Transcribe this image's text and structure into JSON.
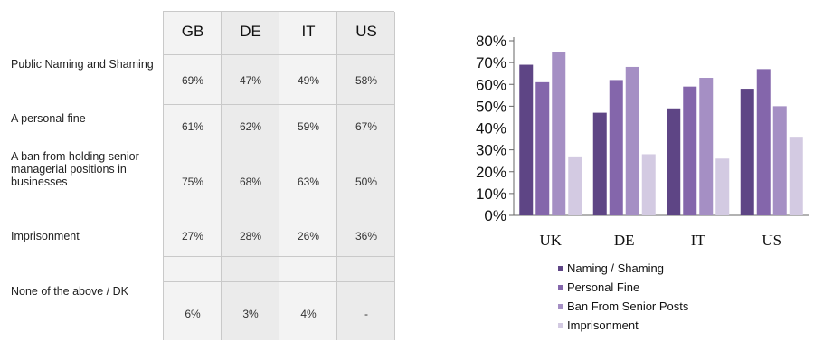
{
  "table": {
    "columns": [
      "GB",
      "DE",
      "IT",
      "US"
    ],
    "rows": [
      {
        "label": "Public Naming and Shaming",
        "values": [
          "69%",
          "47%",
          "49%",
          "58%"
        ]
      },
      {
        "label": "A personal fine",
        "values": [
          "61%",
          "62%",
          "59%",
          "67%"
        ]
      },
      {
        "label": "A ban from holding senior managerial positions in businesses",
        "values": [
          "75%",
          "68%",
          "63%",
          "50%"
        ]
      },
      {
        "label": "Imprisonment",
        "values": [
          "27%",
          "28%",
          "26%",
          "36%"
        ]
      },
      {
        "label": "",
        "values": [
          "",
          "",
          "",
          ""
        ]
      },
      {
        "label": "None of the above / DK",
        "values": [
          "6%",
          "3%",
          "4%",
          "-"
        ]
      }
    ]
  },
  "chart_data": {
    "type": "bar",
    "categories": [
      "UK",
      "DE",
      "IT",
      "US"
    ],
    "series": [
      {
        "name": "Naming / Shaming",
        "values": [
          69,
          47,
          49,
          58
        ],
        "color": "#5e4585"
      },
      {
        "name": "Personal Fine",
        "values": [
          61,
          62,
          59,
          67
        ],
        "color": "#8466ab"
      },
      {
        "name": "Ban From Senior Posts",
        "values": [
          75,
          68,
          63,
          50
        ],
        "color": "#a58fc4"
      },
      {
        "name": "Imprisonment",
        "values": [
          27,
          28,
          26,
          36
        ],
        "color": "#d3cae2"
      }
    ],
    "ylim": [
      0,
      80
    ],
    "yticks": [
      "0%",
      "10%",
      "20%",
      "30%",
      "40%",
      "50%",
      "60%",
      "70%",
      "80%"
    ],
    "legend_position": "bottom",
    "grid": false
  }
}
